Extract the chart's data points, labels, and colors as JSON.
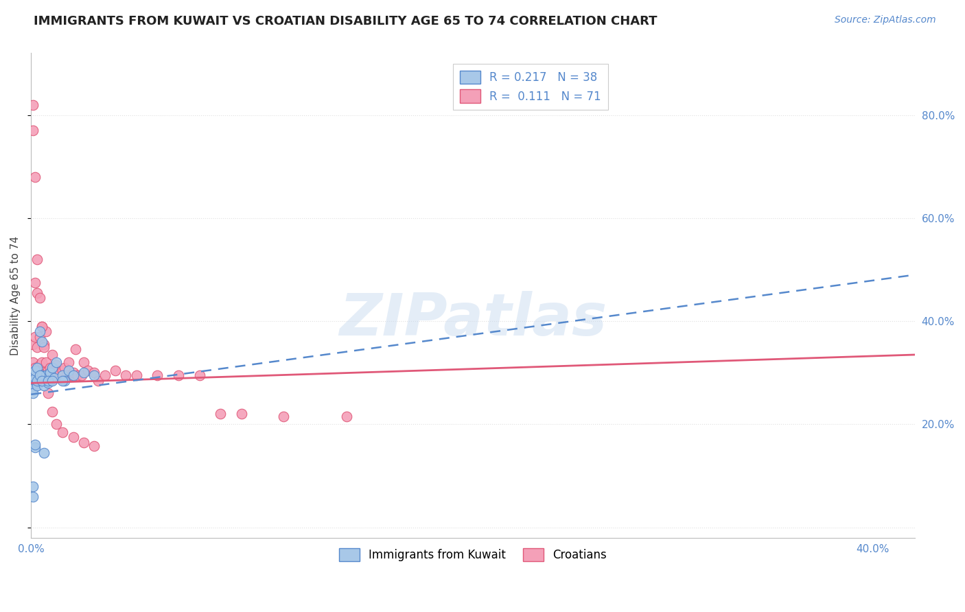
{
  "title": "IMMIGRANTS FROM KUWAIT VS CROATIAN DISABILITY AGE 65 TO 74 CORRELATION CHART",
  "source": "Source: ZipAtlas.com",
  "ylabel": "Disability Age 65 to 74",
  "xlim": [
    0.0,
    0.42
  ],
  "ylim": [
    -0.02,
    0.92
  ],
  "r_kuwait": 0.217,
  "n_kuwait": 38,
  "r_croatian": 0.111,
  "n_croatian": 71,
  "color_kuwait": "#a8c8e8",
  "color_croatian": "#f4a0b8",
  "trendline_kuwait_color": "#5588cc",
  "trendline_croatian_color": "#e05878",
  "background_color": "#ffffff",
  "grid_color": "#e0e0e0",
  "watermark": "ZIPatlas",
  "kuwait_x": [
    0.001,
    0.001,
    0.001,
    0.001,
    0.002,
    0.002,
    0.002,
    0.003,
    0.003,
    0.003,
    0.004,
    0.004,
    0.005,
    0.005,
    0.006,
    0.007,
    0.008,
    0.009,
    0.01,
    0.011,
    0.012,
    0.015,
    0.016,
    0.018,
    0.02,
    0.025,
    0.03,
    0.001,
    0.001,
    0.002,
    0.002,
    0.003,
    0.004,
    0.005,
    0.006,
    0.008,
    0.01,
    0.015
  ],
  "kuwait_y": [
    0.28,
    0.295,
    0.27,
    0.26,
    0.285,
    0.29,
    0.305,
    0.28,
    0.31,
    0.275,
    0.285,
    0.38,
    0.295,
    0.36,
    0.275,
    0.295,
    0.28,
    0.3,
    0.31,
    0.29,
    0.32,
    0.295,
    0.285,
    0.305,
    0.295,
    0.3,
    0.295,
    0.08,
    0.06,
    0.155,
    0.16,
    0.285,
    0.295,
    0.285,
    0.145,
    0.285,
    0.285,
    0.285
  ],
  "croatian_x": [
    0.001,
    0.001,
    0.001,
    0.001,
    0.002,
    0.002,
    0.002,
    0.003,
    0.003,
    0.003,
    0.004,
    0.004,
    0.004,
    0.005,
    0.005,
    0.005,
    0.006,
    0.006,
    0.007,
    0.007,
    0.008,
    0.008,
    0.009,
    0.009,
    0.01,
    0.01,
    0.011,
    0.012,
    0.013,
    0.014,
    0.015,
    0.016,
    0.017,
    0.018,
    0.019,
    0.02,
    0.021,
    0.022,
    0.024,
    0.025,
    0.027,
    0.03,
    0.032,
    0.035,
    0.04,
    0.045,
    0.05,
    0.06,
    0.07,
    0.08,
    0.09,
    0.1,
    0.12,
    0.15,
    0.001,
    0.001,
    0.002,
    0.003,
    0.002,
    0.003,
    0.004,
    0.005,
    0.006,
    0.007,
    0.008,
    0.01,
    0.012,
    0.015,
    0.02,
    0.025,
    0.03
  ],
  "croatian_y": [
    0.295,
    0.28,
    0.32,
    0.355,
    0.31,
    0.295,
    0.37,
    0.35,
    0.305,
    0.295,
    0.37,
    0.315,
    0.295,
    0.39,
    0.32,
    0.295,
    0.355,
    0.295,
    0.32,
    0.38,
    0.305,
    0.295,
    0.31,
    0.285,
    0.335,
    0.305,
    0.295,
    0.315,
    0.305,
    0.29,
    0.305,
    0.31,
    0.295,
    0.32,
    0.295,
    0.3,
    0.345,
    0.295,
    0.295,
    0.32,
    0.305,
    0.3,
    0.285,
    0.295,
    0.305,
    0.295,
    0.295,
    0.295,
    0.295,
    0.295,
    0.22,
    0.22,
    0.215,
    0.215,
    0.82,
    0.77,
    0.68,
    0.52,
    0.475,
    0.455,
    0.445,
    0.39,
    0.35,
    0.295,
    0.26,
    0.225,
    0.2,
    0.185,
    0.175,
    0.165,
    0.158
  ],
  "kuwait_trend_x": [
    0.0,
    0.42
  ],
  "kuwait_trend_y": [
    0.258,
    0.49
  ],
  "croatian_trend_x": [
    0.0,
    0.42
  ],
  "croatian_trend_y": [
    0.28,
    0.335
  ]
}
